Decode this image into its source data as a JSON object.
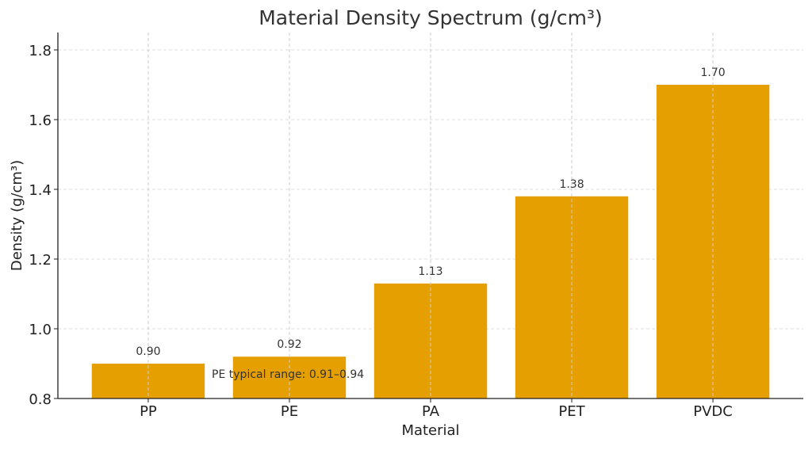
{
  "chart_data": {
    "type": "bar",
    "title": "Material Density Spectrum (g/cm³)",
    "xlabel": "Material",
    "ylabel": "Density (g/cm³)",
    "categories": [
      "PP",
      "PE",
      "PA",
      "PET",
      "PVDC"
    ],
    "values": [
      0.9,
      0.92,
      1.13,
      1.38,
      1.7
    ],
    "data_labels": [
      "0.90",
      "0.92",
      "1.13",
      "1.38",
      "1.70"
    ],
    "ylim": [
      0.8,
      1.85
    ],
    "yticks": [
      0.8,
      1.0,
      1.2,
      1.4,
      1.6,
      1.8
    ],
    "ytick_labels": [
      "0.8",
      "1.0",
      "1.2",
      "1.4",
      "1.6",
      "1.8"
    ],
    "grid": true,
    "bar_color": "#E69F00",
    "annotation": {
      "text": "PE typical range: 0.91–0.94",
      "x": 0.45,
      "y": 0.87
    }
  }
}
